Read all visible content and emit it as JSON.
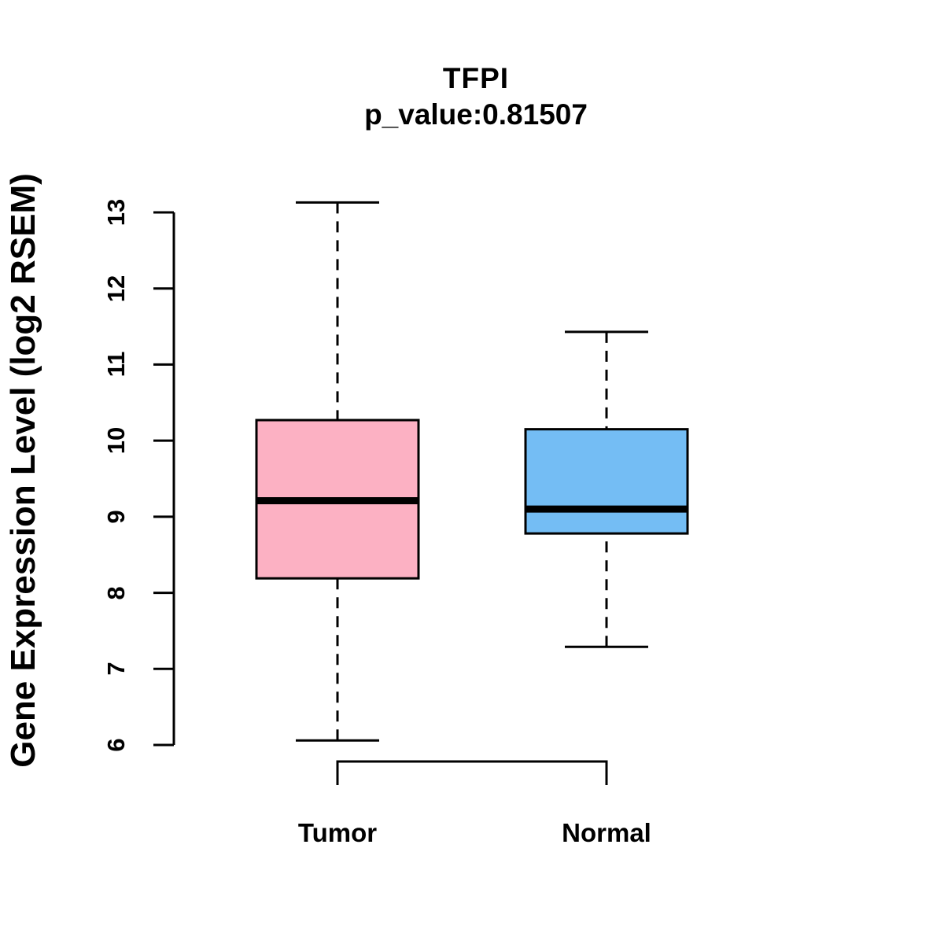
{
  "title": {
    "gene": "TFPI",
    "pvalue_text": "p_value:0.81507"
  },
  "chart_data": {
    "type": "boxplot",
    "title": "TFPI",
    "subtitle": "p_value:0.81507",
    "ylabel": "Gene Expression Level (log2 RSEM)",
    "ylim": [
      6,
      13.2
    ],
    "yticks": [
      6,
      7,
      8,
      9,
      10,
      11,
      12,
      13
    ],
    "grid": false,
    "whisker_style": "dashed",
    "comparison_bracket": true,
    "groups": [
      {
        "label": "Tumor",
        "color": "#FCB1C3",
        "whisker_low": 6.06,
        "q1": 8.19,
        "median": 9.21,
        "q3": 10.27,
        "whisker_high": 13.13
      },
      {
        "label": "Normal",
        "color": "#74BDF4",
        "whisker_low": 7.29,
        "q1": 8.78,
        "median": 9.1,
        "q3": 10.15,
        "whisker_high": 11.43
      }
    ]
  },
  "colors": {
    "stroke": "#000000",
    "background": "#FFFFFF"
  }
}
